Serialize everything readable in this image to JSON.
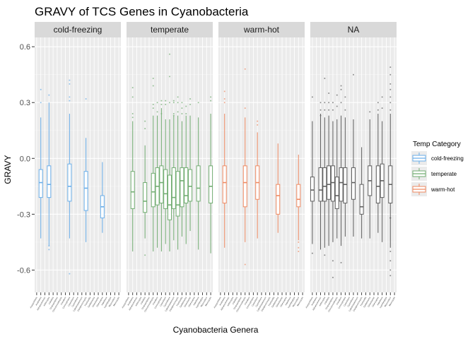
{
  "chart_data": {
    "type": "box",
    "title": "GRAVY of TCS Genes in Cyanobacteria",
    "xlabel": "Cyanobacteria Genera",
    "ylabel": "GRAVY",
    "ylim": [
      -0.72,
      0.65
    ],
    "yticks": [
      -0.6,
      -0.3,
      0.0,
      0.3,
      0.6
    ],
    "ytick_labels": [
      "-0.6",
      "-0.3",
      "0.0",
      "0.3",
      "0.6"
    ],
    "facets": [
      "cold-freezing",
      "temperate",
      "warm-hot",
      "NA"
    ],
    "legend": {
      "title": "Temp Category",
      "position": "right",
      "entries": [
        "cold-freezing",
        "temperate",
        "warm-hot"
      ]
    },
    "colors": {
      "cold-freezing": "#6aaee9",
      "temperate": "#72ad72",
      "warm-hot": "#ef8a62",
      "NA": "#5f5f5f",
      "strip": "#d9d9d9",
      "panel": "#ebebeb",
      "grid_major": "#ffffff",
      "grid_minor": "#f5f5f5"
    },
    "panels": [
      {
        "facet": "cold-freezing",
        "category": "cold-freezing",
        "slots": 21,
        "boxes": [
          {
            "slot": 1,
            "min": -0.43,
            "q1": -0.21,
            "median": -0.13,
            "q3": -0.06,
            "max": 0.22,
            "outliers": [
              0.37,
              0.3
            ]
          },
          {
            "slot": 3,
            "min": -0.47,
            "q1": -0.21,
            "median": -0.14,
            "q3": -0.04,
            "max": 0.3,
            "outliers": [
              0.34,
              -0.49,
              -0.47
            ]
          },
          {
            "slot": 8,
            "min": -0.43,
            "q1": -0.23,
            "median": -0.15,
            "q3": -0.03,
            "max": 0.24,
            "outliers": [
              0.42,
              0.4,
              0.33,
              0.31
            ]
          },
          {
            "slot": 12,
            "min": -0.45,
            "q1": -0.28,
            "median": -0.16,
            "q3": -0.07,
            "max": 0.11,
            "outliers": [
              0.32
            ]
          },
          {
            "slot": 16,
            "min": -0.4,
            "q1": -0.32,
            "median": -0.26,
            "q3": -0.2,
            "max": -0.02,
            "outliers": []
          }
        ],
        "stray_points": [
          {
            "slot": 8,
            "y": -0.62
          }
        ]
      },
      {
        "facet": "temperate",
        "category": "temperate",
        "slots": 21,
        "boxes": [
          {
            "slot": 1,
            "min": -0.5,
            "q1": -0.27,
            "median": -0.18,
            "q3": -0.07,
            "max": 0.2,
            "outliers": [
              0.38,
              0.33,
              0.24,
              0.22
            ]
          },
          {
            "slot": 4,
            "min": -0.43,
            "q1": -0.29,
            "median": -0.23,
            "q3": -0.13,
            "max": 0.07,
            "outliers": [
              0.2,
              0.16,
              -0.52
            ]
          },
          {
            "slot": 6,
            "min": -0.5,
            "q1": -0.26,
            "median": -0.18,
            "q3": -0.08,
            "max": 0.23,
            "outliers": [
              0.43,
              0.39,
              0.29,
              0.27
            ]
          },
          {
            "slot": 7,
            "min": -0.48,
            "q1": -0.25,
            "median": -0.15,
            "q3": -0.05,
            "max": 0.23,
            "outliers": [
              0.3,
              0.25
            ]
          },
          {
            "slot": 8,
            "min": -0.5,
            "q1": -0.24,
            "median": -0.13,
            "q3": -0.04,
            "max": 0.27,
            "outliers": [
              0.31,
              0.29,
              0.24
            ]
          },
          {
            "slot": 9,
            "min": -0.46,
            "q1": -0.27,
            "median": -0.19,
            "q3": -0.06,
            "max": 0.21,
            "outliers": [
              0.31,
              0.29
            ]
          },
          {
            "slot": 10,
            "min": -0.5,
            "q1": -0.33,
            "median": -0.25,
            "q3": -0.09,
            "max": 0.21,
            "outliers": [
              0.56,
              0.44,
              0.3
            ]
          },
          {
            "slot": 11,
            "min": -0.44,
            "q1": -0.27,
            "median": -0.21,
            "q3": -0.05,
            "max": 0.23,
            "outliers": [
              0.31,
              0.3,
              0.24,
              0.23
            ]
          },
          {
            "slot": 12,
            "min": -0.49,
            "q1": -0.31,
            "median": -0.25,
            "q3": -0.07,
            "max": 0.23,
            "outliers": [
              0.33,
              0.3,
              0.25
            ]
          },
          {
            "slot": 13,
            "min": -0.42,
            "q1": -0.26,
            "median": -0.12,
            "q3": -0.05,
            "max": 0.2,
            "outliers": [
              0.3,
              0.27,
              0.24
            ]
          },
          {
            "slot": 14,
            "min": -0.46,
            "q1": -0.24,
            "median": -0.2,
            "q3": -0.05,
            "max": 0.23,
            "outliers": [
              0.28,
              0.24
            ]
          },
          {
            "slot": 15,
            "min": -0.39,
            "q1": -0.23,
            "median": -0.15,
            "q3": -0.06,
            "max": 0.23,
            "outliers": [
              0.32,
              0.29
            ]
          },
          {
            "slot": 17,
            "min": -0.49,
            "q1": -0.23,
            "median": -0.16,
            "q3": -0.04,
            "max": 0.22,
            "outliers": [
              0.3
            ]
          },
          {
            "slot": 20,
            "min": -0.51,
            "q1": -0.24,
            "median": -0.15,
            "q3": -0.04,
            "max": 0.24,
            "outliers": [
              0.33,
              0.31
            ]
          }
        ],
        "stray_points": []
      },
      {
        "facet": "warm-hot",
        "category": "warm-hot",
        "slots": 21,
        "boxes": [
          {
            "slot": 1,
            "min": -0.48,
            "q1": -0.24,
            "median": -0.13,
            "q3": -0.04,
            "max": 0.24,
            "outliers": [
              0.36,
              0.32,
              0.3
            ]
          },
          {
            "slot": 6,
            "min": -0.45,
            "q1": -0.26,
            "median": -0.13,
            "q3": -0.04,
            "max": 0.22,
            "outliers": [
              0.48,
              0.27
            ]
          },
          {
            "slot": 9,
            "min": -0.43,
            "q1": -0.22,
            "median": -0.13,
            "q3": -0.04,
            "max": 0.14,
            "outliers": [
              0.2,
              0.18
            ]
          },
          {
            "slot": 14,
            "min": -0.4,
            "q1": -0.3,
            "median": -0.2,
            "q3": -0.14,
            "max": 0.08,
            "outliers": []
          },
          {
            "slot": 19,
            "min": -0.44,
            "q1": -0.26,
            "median": -0.22,
            "q3": -0.14,
            "max": 0.02,
            "outliers": [
              -0.45,
              -0.48,
              -0.5
            ]
          }
        ],
        "stray_points": [
          {
            "slot": 6,
            "y": -0.57
          }
        ]
      },
      {
        "facet": "NA",
        "category": "NA",
        "slots": 21,
        "boxes": [
          {
            "slot": 0,
            "min": -0.46,
            "q1": -0.23,
            "median": -0.17,
            "q3": -0.1,
            "max": 0.2,
            "outliers": [
              0.33,
              -0.51
            ]
          },
          {
            "slot": 2,
            "min": -0.49,
            "q1": -0.23,
            "median": -0.17,
            "q3": -0.05,
            "max": 0.24,
            "outliers": [
              0.3,
              0.26,
              0.23
            ]
          },
          {
            "slot": 3,
            "min": -0.48,
            "q1": -0.23,
            "median": -0.15,
            "q3": -0.05,
            "max": 0.22,
            "outliers": [
              0.43,
              0.3,
              0.26,
              -0.52
            ]
          },
          {
            "slot": 4,
            "min": -0.47,
            "q1": -0.22,
            "median": -0.14,
            "q3": -0.04,
            "max": 0.23,
            "outliers": [
              0.35,
              0.3,
              0.26
            ]
          },
          {
            "slot": 5,
            "min": -0.45,
            "q1": -0.23,
            "median": -0.13,
            "q3": -0.04,
            "max": 0.2,
            "outliers": [
              0.3,
              0.26,
              -0.55,
              -0.64
            ]
          },
          {
            "slot": 6,
            "min": -0.43,
            "q1": -0.27,
            "median": -0.2,
            "q3": -0.1,
            "max": 0.21,
            "outliers": [
              0.34,
              0.28
            ]
          },
          {
            "slot": 7,
            "min": -0.47,
            "q1": -0.23,
            "median": -0.13,
            "q3": -0.05,
            "max": 0.23,
            "outliers": [
              0.39,
              0.37,
              0.3,
              -0.56
            ]
          },
          {
            "slot": 8,
            "min": -0.42,
            "q1": -0.24,
            "median": -0.14,
            "q3": -0.05,
            "max": 0.22,
            "outliers": [
              0.33,
              0.26
            ]
          },
          {
            "slot": 10,
            "min": -0.42,
            "q1": -0.22,
            "median": -0.13,
            "q3": -0.05,
            "max": 0.21,
            "outliers": [
              0.45
            ]
          },
          {
            "slot": 12,
            "min": -0.43,
            "q1": -0.3,
            "median": -0.26,
            "q3": -0.14,
            "max": 0.06,
            "outliers": []
          },
          {
            "slot": 14,
            "min": -0.43,
            "q1": -0.2,
            "median": -0.12,
            "q3": -0.04,
            "max": 0.21,
            "outliers": [
              0.25
            ]
          },
          {
            "slot": 16,
            "min": -0.4,
            "q1": -0.24,
            "median": -0.15,
            "q3": -0.04,
            "max": 0.24,
            "outliers": [
              0.3,
              0.26
            ]
          },
          {
            "slot": 17,
            "min": -0.45,
            "q1": -0.21,
            "median": -0.12,
            "q3": -0.03,
            "max": 0.2,
            "outliers": [
              0.33,
              0.27
            ]
          },
          {
            "slot": 19,
            "min": -0.48,
            "q1": -0.24,
            "median": -0.14,
            "q3": -0.04,
            "max": 0.24,
            "outliers": [
              0.49,
              0.45,
              0.4,
              0.37,
              0.33,
              0.3,
              0.26,
              -0.32,
              -0.5,
              -0.55,
              -0.6,
              -0.63
            ]
          }
        ],
        "stray_points": [
          {
            "slot": 19,
            "y": -0.32
          }
        ]
      }
    ],
    "genus_labels": [
      "Acaryochloris",
      "Anabaena",
      "Aphanizomenon",
      "Arthrospira",
      "Calothrix",
      "Chamaesiphon",
      "Chroococcidiopsis",
      "Crinalium",
      "Crocosphaera",
      "Cyanobium",
      "Cyanothece",
      "Cylindrospermum",
      "Dactylococcopsis",
      "Fischerella",
      "Geitlerinema",
      "Gloeobacter",
      "Gloeocapsa",
      "Halothece",
      "Leptolyngbya",
      "Microcoleus",
      "Microcystis"
    ]
  }
}
